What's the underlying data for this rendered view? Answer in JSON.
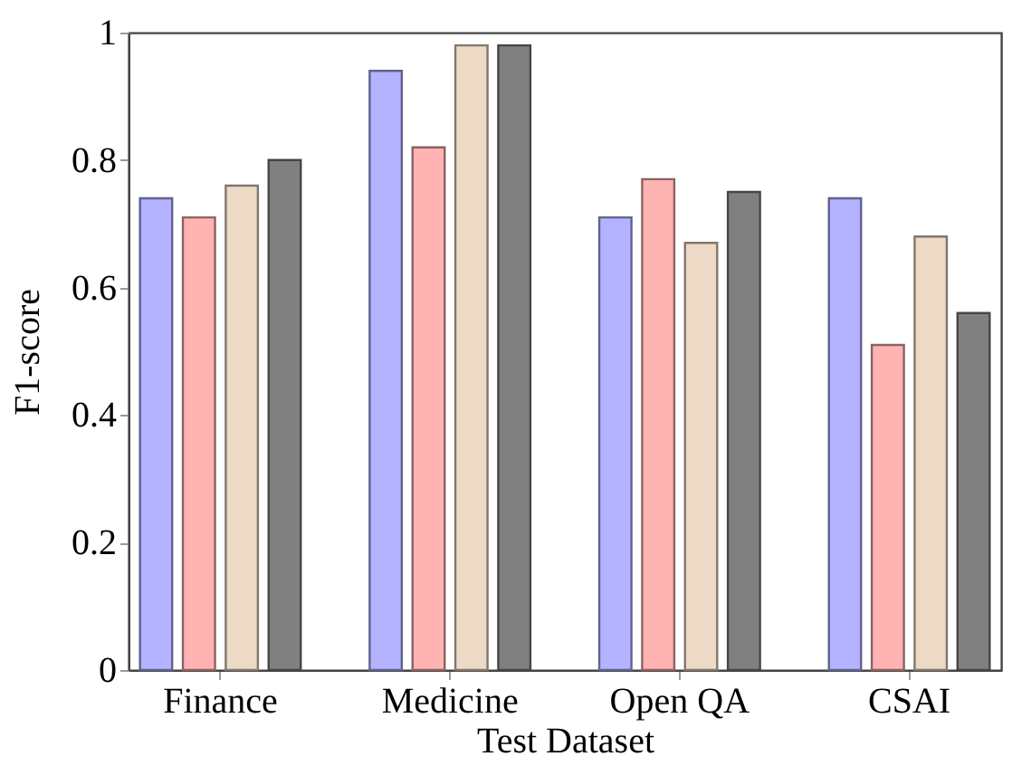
{
  "chart_data": {
    "type": "bar",
    "xlabel": "Test Dataset",
    "ylabel": "F1-score",
    "categories": [
      "Finance",
      "Medicine",
      "Open QA",
      "CSAI"
    ],
    "series": [
      {
        "color": "#b3b3ff",
        "values": [
          0.74,
          0.94,
          0.71,
          0.74
        ]
      },
      {
        "color": "#ffb3b3",
        "values": [
          0.71,
          0.82,
          0.77,
          0.51
        ]
      },
      {
        "color": "#ecd9c6",
        "values": [
          0.76,
          0.98,
          0.67,
          0.68
        ]
      },
      {
        "color": "#808080",
        "values": [
          0.8,
          0.98,
          0.75,
          0.56
        ]
      }
    ],
    "ylim": [
      0,
      1
    ],
    "yticks": [
      0,
      0.2,
      0.4,
      0.6,
      0.8,
      1
    ],
    "grid": false
  }
}
